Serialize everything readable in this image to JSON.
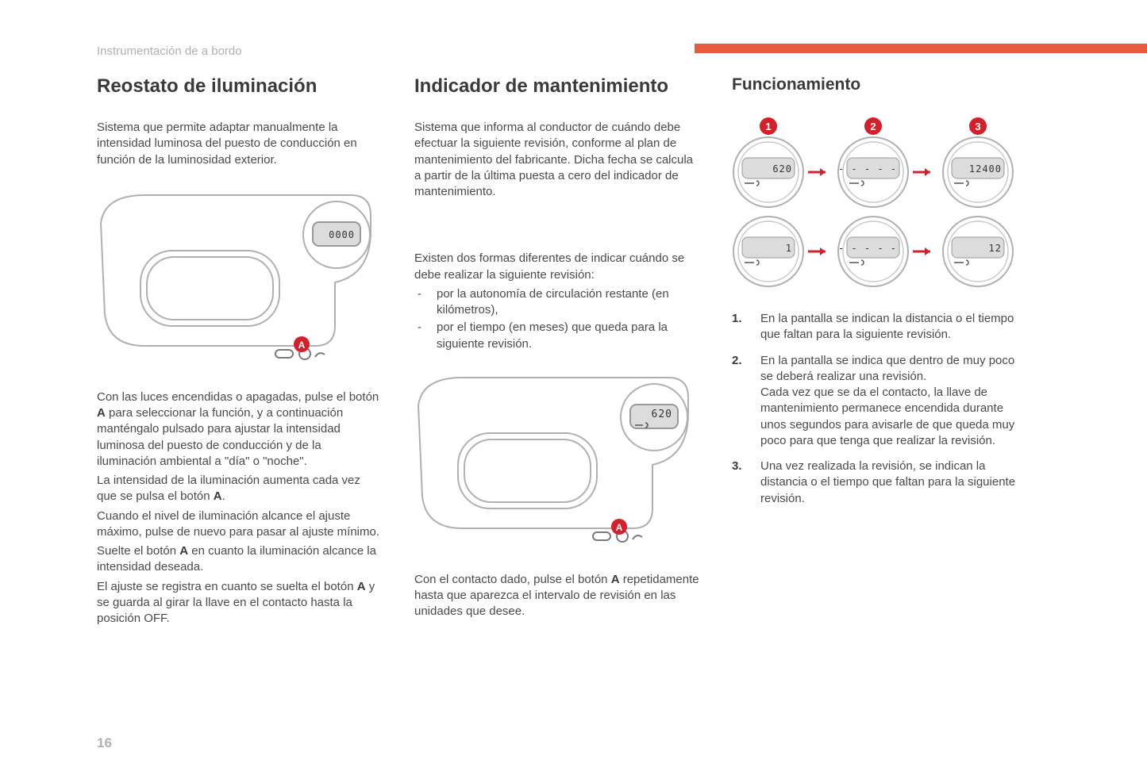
{
  "header": {
    "section_label": "Instrumentación de a bordo"
  },
  "accent_bar": {
    "color": "#e85a3d"
  },
  "page_number": "16",
  "col1": {
    "title": "Reostato de iluminación",
    "intro": "Sistema que permite adaptar manualmente la intensidad luminosa del puesto de conducción en función de la luminosidad exterior.",
    "illustration": {
      "type": "dashboard-line-art",
      "marker_label": "A",
      "marker_color": "#d4202a",
      "display_text": "0000",
      "stroke": "#b0b0b0"
    },
    "body_p1": "Con las luces encendidas o apagadas, pulse el botón <b>A</b> para seleccionar la función, y a continuación manténgalo pulsado para ajustar la intensidad luminosa del puesto de conducción y de la iluminación ambiental a \"día\" o \"noche\".",
    "body_p2": "La intensidad de la iluminación aumenta cada vez que se pulsa el botón <b>A</b>.",
    "body_p3": "Cuando el nivel de iluminación alcance el ajuste máximo, pulse de nuevo para pasar al ajuste mínimo.",
    "body_p4": "Suelte el botón <b>A</b> en cuanto la iluminación alcance la intensidad deseada.",
    "body_p5": "El ajuste se registra en cuanto se suelta el botón <b>A</b> y se guarda al girar la llave en el contacto hasta la posición OFF."
  },
  "col2": {
    "title": "Indicador de mantenimiento",
    "intro": "Sistema que informa al conductor de cuándo debe efectuar la siguiente revisión, conforme al plan de mantenimiento del fabricante. Dicha fecha se calcula a partir de la última puesta a cero del indicador de mantenimiento.",
    "body_p1": "Existen dos formas diferentes de indicar cuándo se debe realizar la siguiente revisión:",
    "bullets": [
      "por la autonomía de circulación restante (en kilómetros),",
      "por el tiempo (en meses) que queda para la siguiente revisión."
    ],
    "illustration": {
      "type": "dashboard-line-art",
      "marker_label": "A",
      "marker_color": "#d4202a",
      "display_text": "620",
      "wrench_icon": true,
      "stroke": "#b0b0b0"
    },
    "body_p2": "Con el contacto dado, pulse el botón <b>A</b> repetidamente hasta que aparezca el intervalo de revisión en las unidades que desee."
  },
  "col3": {
    "title": "Funcionamiento",
    "gauge_grid": {
      "type": "gauge-sequence",
      "badge_color": "#d4202a",
      "arrow_color": "#d4202a",
      "gauge_stroke": "#b0b0b0",
      "lcd_fill": "#d8d8d8",
      "rows": [
        {
          "badges": [
            "1",
            "2",
            "3"
          ],
          "values": [
            "620",
            "- - - - -",
            "12400"
          ]
        },
        {
          "badges": null,
          "values": [
            "1",
            "- - - - -",
            "12"
          ]
        }
      ]
    },
    "list": [
      "En la pantalla se indican la distancia o el tiempo que faltan para la siguiente revisión.",
      "En la pantalla se indica que dentro de muy poco se deberá realizar una revisión.\nCada vez que se da el contacto, la llave de mantenimiento permanece encendida durante unos segundos para avisarle de que queda muy poco para que tenga que realizar la revisión.",
      "Una vez realizada la revisión, se indican la distancia o el tiempo que faltan para la siguiente revisión."
    ]
  }
}
